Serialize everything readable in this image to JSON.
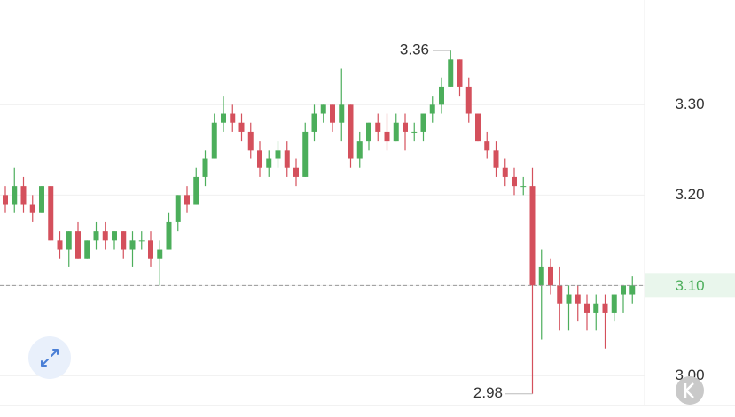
{
  "chart_data": {
    "type": "candlestick",
    "open": [
      3.2,
      3.19,
      3.21,
      3.19,
      3.18,
      3.21,
      3.15,
      3.14,
      3.16,
      3.13,
      3.15,
      3.16,
      3.15,
      3.16,
      3.14,
      3.15,
      3.15,
      3.13,
      3.14,
      3.17,
      3.2,
      3.19,
      3.22,
      3.24,
      3.28,
      3.29,
      3.28,
      3.27,
      3.25,
      3.23,
      3.24,
      3.25,
      3.23,
      3.22,
      3.27,
      3.29,
      3.3,
      3.28,
      3.3,
      3.24,
      3.26,
      3.28,
      3.27,
      3.26,
      3.28,
      3.27,
      3.27,
      3.29,
      3.3,
      3.32,
      3.35,
      3.32,
      3.29,
      3.26,
      3.25,
      3.23,
      3.22,
      3.21,
      3.21,
      3.1,
      3.12,
      3.1,
      3.08,
      3.09,
      3.08,
      3.07,
      3.08,
      3.07,
      3.09,
      3.09
    ],
    "high": [
      3.21,
      3.23,
      3.22,
      3.2,
      3.21,
      3.21,
      3.16,
      3.16,
      3.17,
      3.15,
      3.17,
      3.17,
      3.16,
      3.16,
      3.16,
      3.16,
      3.16,
      3.15,
      3.18,
      3.2,
      3.21,
      3.23,
      3.25,
      3.29,
      3.31,
      3.3,
      3.29,
      3.28,
      3.26,
      3.25,
      3.26,
      3.26,
      3.24,
      3.28,
      3.3,
      3.3,
      3.3,
      3.34,
      3.3,
      3.27,
      3.28,
      3.29,
      3.29,
      3.29,
      3.29,
      3.28,
      3.29,
      3.31,
      3.33,
      3.36,
      3.35,
      3.33,
      3.29,
      3.27,
      3.26,
      3.24,
      3.23,
      3.22,
      3.23,
      3.14,
      3.13,
      3.12,
      3.1,
      3.1,
      3.09,
      3.09,
      3.09,
      3.09,
      3.1,
      3.11
    ],
    "low": [
      3.18,
      3.18,
      3.18,
      3.17,
      3.18,
      3.15,
      3.13,
      3.12,
      3.13,
      3.13,
      3.14,
      3.14,
      3.14,
      3.13,
      3.12,
      3.14,
      3.12,
      3.1,
      3.14,
      3.16,
      3.18,
      3.19,
      3.21,
      3.24,
      3.27,
      3.27,
      3.26,
      3.24,
      3.22,
      3.22,
      3.23,
      3.22,
      3.21,
      3.22,
      3.26,
      3.28,
      3.27,
      3.26,
      3.23,
      3.23,
      3.25,
      3.26,
      3.25,
      3.26,
      3.25,
      3.26,
      3.26,
      3.28,
      3.29,
      3.32,
      3.31,
      3.28,
      3.26,
      3.24,
      3.22,
      3.21,
      3.2,
      3.2,
      2.98,
      3.04,
      3.09,
      3.05,
      3.05,
      3.06,
      3.05,
      3.05,
      3.03,
      3.06,
      3.07,
      3.08
    ],
    "close": [
      3.19,
      3.21,
      3.19,
      3.18,
      3.21,
      3.15,
      3.14,
      3.16,
      3.13,
      3.15,
      3.16,
      3.15,
      3.16,
      3.14,
      3.15,
      3.15,
      3.13,
      3.14,
      3.17,
      3.2,
      3.19,
      3.22,
      3.24,
      3.28,
      3.29,
      3.28,
      3.27,
      3.25,
      3.23,
      3.24,
      3.25,
      3.23,
      3.22,
      3.27,
      3.29,
      3.3,
      3.28,
      3.3,
      3.24,
      3.26,
      3.28,
      3.27,
      3.26,
      3.28,
      3.27,
      3.27,
      3.29,
      3.3,
      3.32,
      3.35,
      3.32,
      3.29,
      3.26,
      3.25,
      3.23,
      3.22,
      3.21,
      3.21,
      3.1,
      3.12,
      3.1,
      3.08,
      3.09,
      3.08,
      3.07,
      3.08,
      3.07,
      3.09,
      3.1,
      3.1
    ],
    "up_color": "#4cae5b",
    "down_color": "#d4505c",
    "ylim": [
      2.967,
      3.416
    ],
    "yticks": [
      {
        "value": 3.0,
        "label": "3.00"
      },
      {
        "value": 3.1,
        "label": "3.10"
      },
      {
        "value": 3.2,
        "label": "3.20"
      },
      {
        "value": 3.3,
        "label": "3.30"
      }
    ],
    "grid": true,
    "high_marker": 3.36,
    "low_marker": 2.98,
    "last_price": {
      "value": 3.1,
      "label": "3.10"
    }
  }
}
